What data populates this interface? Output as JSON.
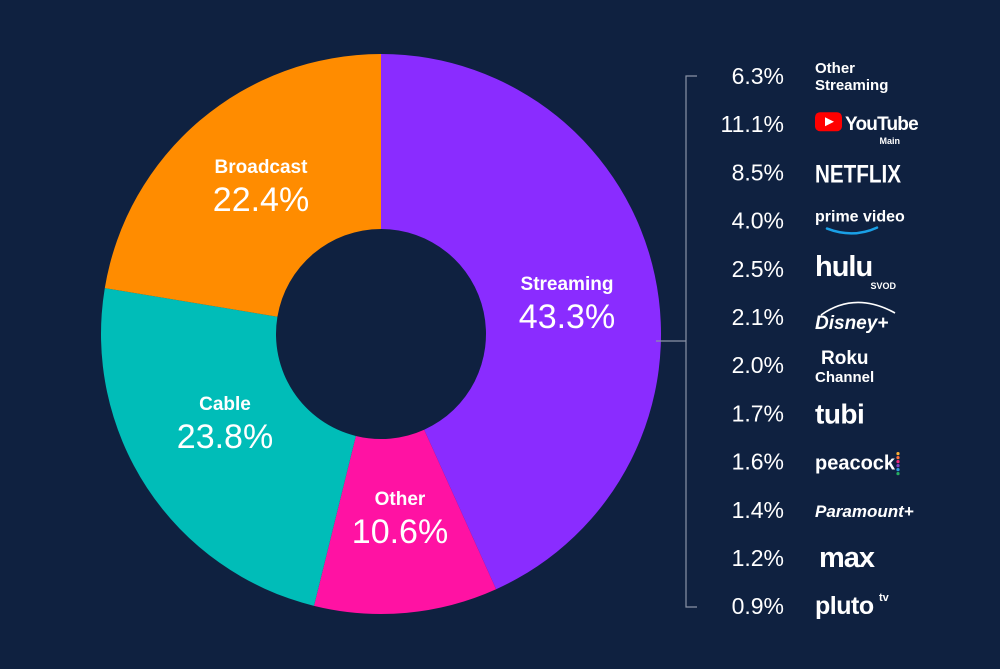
{
  "chart_data": {
    "type": "pie",
    "slices": [
      {
        "name": "Streaming",
        "value": 43.3,
        "label": "43.3%",
        "color": "#8a2cff"
      },
      {
        "name": "Other",
        "value": 10.6,
        "label": "10.6%",
        "color": "#ff12a3"
      },
      {
        "name": "Cable",
        "value": 23.8,
        "label": "23.8%",
        "color": "#00bdb8"
      },
      {
        "name": "Broadcast",
        "value": 22.4,
        "label": "22.4%",
        "color": "#ff8c00"
      }
    ],
    "breakdown": {
      "parent": "Streaming",
      "items": [
        {
          "name": "Other Streaming",
          "value": 6.3,
          "label": "6.3%"
        },
        {
          "name": "YouTube",
          "sub": "Main",
          "value": 11.1,
          "label": "11.1%"
        },
        {
          "name": "NETFLIX",
          "value": 8.5,
          "label": "8.5%"
        },
        {
          "name": "prime video",
          "value": 4.0,
          "label": "4.0%"
        },
        {
          "name": "hulu",
          "sub": "SVOD",
          "value": 2.5,
          "label": "2.5%"
        },
        {
          "name": "Disney+",
          "value": 2.1,
          "label": "2.1%"
        },
        {
          "name": "Roku Channel",
          "value": 2.0,
          "label": "2.0%"
        },
        {
          "name": "tubi",
          "value": 1.7,
          "label": "1.7%"
        },
        {
          "name": "peacock",
          "value": 1.6,
          "label": "1.6%"
        },
        {
          "name": "Paramount+",
          "value": 1.4,
          "label": "1.4%"
        },
        {
          "name": "max",
          "value": 1.2,
          "label": "1.2%"
        },
        {
          "name": "pluto tv",
          "value": 0.9,
          "label": "0.9%"
        }
      ]
    }
  },
  "colors": {
    "background": "#0f2140",
    "bracket": "#8a93a6",
    "youtube_red": "#ff0000",
    "netflix_red": "#e50914",
    "prime_blue": "#1aa0e6",
    "hulu_green": "#1ce783",
    "tubi_yellow": "#fff200",
    "pluto_yellow": "#fff200"
  }
}
